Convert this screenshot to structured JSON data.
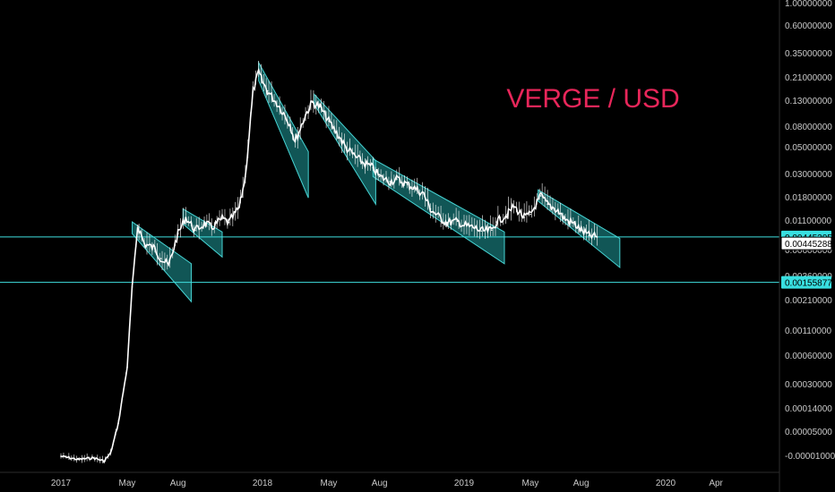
{
  "chart_data": {
    "type": "line",
    "title": "VERGE / USD",
    "y_scale": "log",
    "ylim": [
      3e-05,
      1.0
    ],
    "price_axis_labels": [
      "1.00000000",
      "0.60000000",
      "0.35000000",
      "0.21000000",
      "0.13000000",
      "0.08000000",
      "0.05000000",
      "0.03000000",
      "0.01800000",
      "0.01100000",
      "0.00600000",
      "0.00360000",
      "0.00210000",
      "0.00110000",
      "0.00060000",
      "0.00030000",
      "0.00014000",
      "0.00005000",
      "-0.00001000"
    ],
    "time_axis_labels": [
      "2017",
      "May",
      "Aug",
      "2018",
      "May",
      "Aug",
      "2019",
      "May",
      "Aug",
      "2020",
      "Apr"
    ],
    "horizontal_levels": [
      {
        "value": 0.00445205,
        "label": "0.00445205"
      },
      {
        "value": 0.00155877,
        "label": "0.00155877"
      }
    ],
    "last_price_label": "0.00445288",
    "series": [
      {
        "name": "",
        "x": [
          "2017-01",
          "2017-02",
          "2017-03",
          "2017-03-20",
          "2017-04",
          "2017-04-15",
          "2017-05",
          "2017-05-10",
          "2017-05-20",
          "2017-06",
          "2017-06-20",
          "2017-07",
          "2017-07-15",
          "2017-08",
          "2017-08-15",
          "2017-09",
          "2017-09-20",
          "2017-10",
          "2017-10-20",
          "2017-11",
          "2017-11-20",
          "2017-12",
          "2017-12-15",
          "2017-12-25",
          "2018-01",
          "2018-01-10",
          "2018-02",
          "2018-02-20",
          "2018-03",
          "2018-03-20",
          "2018-04",
          "2018-04-15",
          "2018-05",
          "2018-05-20",
          "2018-06",
          "2018-06-20",
          "2018-07",
          "2018-07-20",
          "2018-08",
          "2018-08-20",
          "2018-09",
          "2018-09-20",
          "2018-10",
          "2018-10-20",
          "2018-11",
          "2018-11-20",
          "2018-12",
          "2018-12-20",
          "2019-01",
          "2019-01-20",
          "2019-02",
          "2019-02-20",
          "2019-03",
          "2019-03-20",
          "2019-04",
          "2019-04-20",
          "2019-05",
          "2019-05-20",
          "2019-06",
          "2019-06-20",
          "2019-07",
          "2019-07-20",
          "2019-08",
          "2019-08-15",
          "2019-08-30"
        ],
        "y": [
          2.8e-05,
          2.6e-05,
          2.7e-05,
          2.5e-05,
          3e-05,
          6e-05,
          0.00022,
          0.0014,
          0.0058,
          0.0038,
          0.0034,
          0.0027,
          0.0023,
          0.0048,
          0.007,
          0.0052,
          0.0061,
          0.0055,
          0.0068,
          0.0062,
          0.0088,
          0.018,
          0.13,
          0.2,
          0.16,
          0.13,
          0.09,
          0.06,
          0.04,
          0.075,
          0.1,
          0.09,
          0.065,
          0.045,
          0.035,
          0.028,
          0.025,
          0.022,
          0.018,
          0.016,
          0.017,
          0.015,
          0.014,
          0.012,
          0.0085,
          0.0068,
          0.0062,
          0.0064,
          0.0058,
          0.0055,
          0.0051,
          0.0052,
          0.0063,
          0.0075,
          0.009,
          0.007,
          0.0075,
          0.0115,
          0.0095,
          0.0082,
          0.0068,
          0.006,
          0.0052,
          0.0046,
          0.00445
        ]
      }
    ],
    "channels": [
      {
        "start": "2017-05-10",
        "end": "2017-08-25",
        "top": [
          0.0063,
          0.0024
        ],
        "bottom": [
          0.0048,
          0.001
        ]
      },
      {
        "start": "2017-08-10",
        "end": "2017-10-20",
        "top": [
          0.0085,
          0.005
        ],
        "bottom": [
          0.006,
          0.0028
        ]
      },
      {
        "start": "2017-12-25",
        "end": "2018-03-25",
        "top": [
          0.25,
          0.032
        ],
        "bottom": [
          0.165,
          0.011
        ]
      },
      {
        "start": "2018-04-05",
        "end": "2018-07-25",
        "top": [
          0.12,
          0.026
        ],
        "bottom": [
          0.095,
          0.0095
        ]
      },
      {
        "start": "2018-07-20",
        "end": "2019-03-15",
        "top": [
          0.027,
          0.005
        ],
        "bottom": [
          0.018,
          0.0024
        ]
      },
      {
        "start": "2019-05-15",
        "end": "2019-10-10",
        "top": [
          0.0132,
          0.0043
        ],
        "bottom": [
          0.0102,
          0.0022
        ]
      }
    ],
    "colors": {
      "background": "#000000",
      "price_line": "#ffffff",
      "channel_fill": "#1f9c9c",
      "channel_stroke": "#46d3d3",
      "level_line": "#40e0e0",
      "level_badge": "#38dfe0",
      "title": "#e8265a",
      "axis_text": "#c9c9c9"
    }
  }
}
